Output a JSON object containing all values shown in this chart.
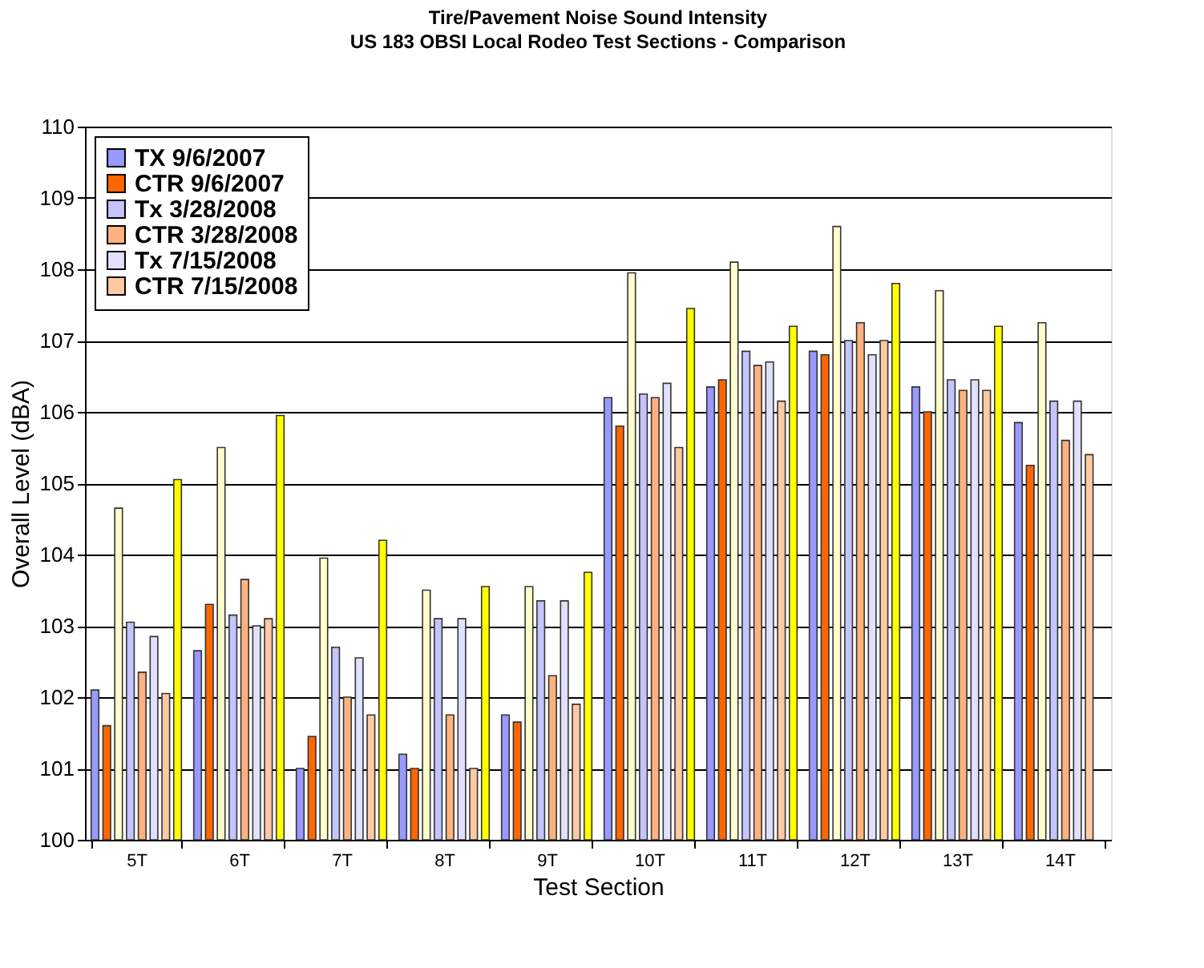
{
  "chart_data": {
    "type": "bar",
    "title": "Tire/Pavement Noise Sound Intensity",
    "subtitle": "US 183 OBSI Local Rodeo Test Sections - Comparison",
    "xlabel": "Test Section",
    "ylabel": "Overall Level (dBA)",
    "categories": [
      "5T",
      "6T",
      "7T",
      "8T",
      "9T",
      "10T",
      "11T",
      "12T",
      "13T",
      "14T"
    ],
    "series": [
      {
        "name": "TX 9/6/2007",
        "color": "#9999ff",
        "values": [
          102.1,
          102.65,
          101.0,
          101.2,
          101.75,
          106.2,
          106.35,
          106.85,
          106.35,
          105.85
        ]
      },
      {
        "name": "CTR 9/6/2007",
        "color": "#ff6600",
        "values": [
          101.6,
          103.3,
          101.45,
          101.0,
          101.65,
          105.8,
          106.45,
          106.8,
          106.0,
          105.25
        ]
      },
      {
        "color": "#ffffcc",
        "values": [
          104.65,
          105.5,
          103.95,
          103.5,
          103.55,
          107.95,
          108.1,
          108.6,
          107.7,
          107.25
        ]
      },
      {
        "name": "Tx 3/28/2008",
        "color": "#c4c4ff",
        "values": [
          103.05,
          103.15,
          102.7,
          103.1,
          103.35,
          106.25,
          106.85,
          107.0,
          106.45,
          106.15
        ]
      },
      {
        "name": "CTR 3/28/2008",
        "color": "#ffb27f",
        "values": [
          102.35,
          103.65,
          102.0,
          101.75,
          102.3,
          106.2,
          106.65,
          107.25,
          106.3,
          105.6
        ]
      },
      {
        "name": "Tx 7/15/2008",
        "color": "#e0e0ff",
        "values": [
          102.85,
          103.0,
          102.55,
          103.1,
          103.35,
          106.4,
          106.7,
          106.8,
          106.45,
          106.15
        ]
      },
      {
        "name": "CTR 7/15/2008",
        "color": "#ffc9a3",
        "values": [
          102.05,
          103.1,
          101.75,
          101.0,
          101.9,
          105.5,
          106.15,
          107.0,
          106.3,
          105.4
        ]
      },
      {
        "color": "#ffff00",
        "values": [
          105.05,
          105.95,
          104.2,
          103.55,
          103.75,
          107.45,
          107.2,
          107.8,
          107.2,
          null
        ]
      }
    ],
    "ylim": [
      100,
      110
    ],
    "yticks": [
      100,
      101,
      102,
      103,
      104,
      105,
      106,
      107,
      108,
      109,
      110
    ],
    "grid": "y",
    "legend": "top left"
  }
}
